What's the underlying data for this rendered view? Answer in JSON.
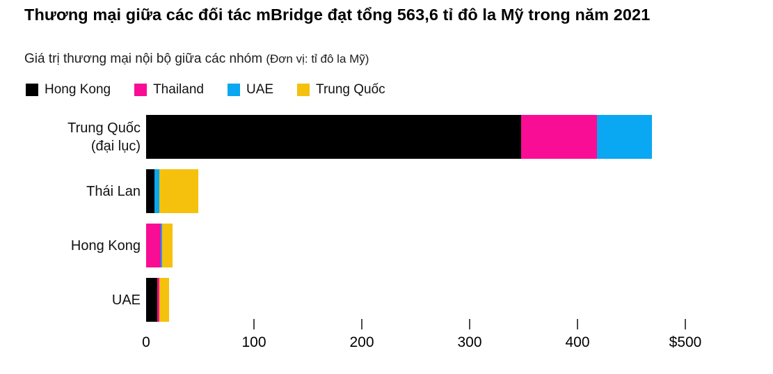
{
  "header": {
    "title": "Thương mại giữa các đối tác mBridge đạt tổng 563,6 tỉ đô la Mỹ trong năm 2021",
    "subtitle": "Giá trị thương mại nội bộ giữa các nhóm",
    "unit_note": "(Đơn vị: tỉ đô la Mỹ)"
  },
  "colors": {
    "Hong Kong": "#000000",
    "Thailand": "#fa0d95",
    "UAE": "#0aa7f2",
    "Trung Quốc": "#f5c10d"
  },
  "chart_data": {
    "type": "bar",
    "orientation": "horizontal",
    "stacked": true,
    "title": "Thương mại giữa các đối tác mBridge đạt tổng 563,6 tỉ đô la Mỹ trong năm 2021",
    "subtitle": "Giá trị thương mại nội bộ giữa các nhóm",
    "unit": "tỉ đô la Mỹ",
    "grand_total_label": "563,6",
    "legend": [
      "Hong Kong",
      "Thailand",
      "UAE",
      "Trung Quốc"
    ],
    "legend_position": "top",
    "grid": false,
    "categories": [
      "Trung Quốc (đại lục)",
      "Thái Lan",
      "Hong Kong",
      "UAE"
    ],
    "rows": [
      {
        "category": "Trung Quốc (đại lục)",
        "label_lines": [
          "Trung Quốc",
          "(đại lục)"
        ],
        "total": 469,
        "segments": [
          {
            "partner": "Hong Kong",
            "value": 348
          },
          {
            "partner": "Thailand",
            "value": 70
          },
          {
            "partner": "UAE",
            "value": 51
          }
        ]
      },
      {
        "category": "Thái Lan",
        "label_lines": [
          "Thái Lan"
        ],
        "total": 48.5,
        "segments": [
          {
            "partner": "Hong Kong",
            "value": 8
          },
          {
            "partner": "UAE",
            "value": 4.5
          },
          {
            "partner": "Trung Quốc",
            "value": 36
          }
        ]
      },
      {
        "category": "Hong Kong",
        "label_lines": [
          "Hong Kong"
        ],
        "total": 24.6,
        "segments": [
          {
            "partner": "Thailand",
            "value": 13.5
          },
          {
            "partner": "UAE",
            "value": 1.6
          },
          {
            "partner": "Trung Quốc",
            "value": 9.5
          }
        ]
      },
      {
        "category": "UAE",
        "label_lines": [
          "UAE"
        ],
        "total": 21.5,
        "segments": [
          {
            "partner": "Hong Kong",
            "value": 10.5
          },
          {
            "partner": "Thailand",
            "value": 2
          },
          {
            "partner": "Trung Quốc",
            "value": 9
          }
        ]
      }
    ],
    "x_axis": {
      "min": 0,
      "max": 500,
      "ticks": [
        {
          "value": 0,
          "label": "0",
          "mark": false
        },
        {
          "value": 100,
          "label": "100",
          "mark": true
        },
        {
          "value": 200,
          "label": "200",
          "mark": true
        },
        {
          "value": 300,
          "label": "300",
          "mark": true
        },
        {
          "value": 400,
          "label": "400",
          "mark": true
        },
        {
          "value": 500,
          "label": "$500",
          "mark": true
        }
      ]
    }
  }
}
